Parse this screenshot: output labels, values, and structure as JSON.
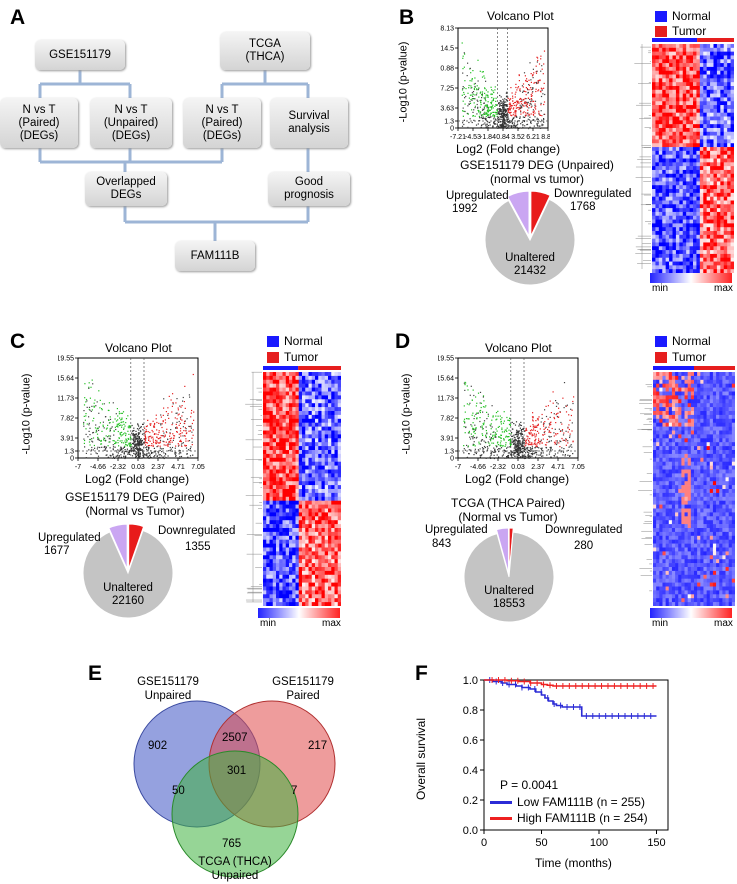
{
  "panels": {
    "a": "A",
    "b": "B",
    "c": "C",
    "d": "D",
    "e": "E",
    "f": "F"
  },
  "flow": {
    "gse": "GSE151179",
    "tcga_1": "TCGA",
    "tcga_2": "(THCA)",
    "nt_paired_1": "N vs T",
    "nt_paired_2": "(Paired)",
    "nt_paired_3": "(DEGs)",
    "nt_unpaired_1": "N vs T",
    "nt_unpaired_2": "(Unpaired)",
    "nt_unpaired_3": "(DEGs)",
    "tcga_paired_1": "N vs T",
    "tcga_paired_2": "(Paired)",
    "tcga_paired_3": "(DEGs)",
    "survival_1": "Survival",
    "survival_2": "analysis",
    "overlapped_1": "Overlapped",
    "overlapped_2": "DEGs",
    "good_1": "Good",
    "good_2": "prognosis",
    "result": "FAM111B"
  },
  "heat_legend": {
    "normal": "Normal",
    "tumor": "Tumor",
    "min": "min",
    "max": "max",
    "normal_color": "#1a1aff",
    "tumor_color": "#e61e1e"
  },
  "volcano_b": {
    "title": "Volcano Plot",
    "ylabel": "-Log10 (p-value)",
    "xlabel": "Log2 (Fold change)",
    "yticks": [
      "0",
      "1.3",
      "3.63",
      "7.25",
      "10.88",
      "14.5",
      "18.13"
    ],
    "xticks": [
      "-7.21",
      "-4.53",
      "-1.84",
      "0.84",
      "3.52",
      "6.21",
      "8.89"
    ]
  },
  "pie_b": {
    "title_1": "GSE151179 DEG (Unpaired)",
    "title_2": "(normal vs tumor)",
    "up_label": "Upregulated",
    "up_value": "1992",
    "down_label": "Downregulated",
    "down_value": "1768",
    "un_label": "Unaltered",
    "un_value": "21432"
  },
  "volcano_c": {
    "title": "Volcano Plot",
    "ylabel": "-Log10 (p-value)",
    "xlabel": "Log2 (Fold change)",
    "yticks": [
      "0",
      "1.3",
      "3.91",
      "7.82",
      "11.73",
      "15.64",
      "19.55"
    ],
    "xticks": [
      "-7",
      "-4.66",
      "-2.32",
      "0.03",
      "2.37",
      "4.71",
      "7.05"
    ]
  },
  "pie_c": {
    "title_1": "GSE151179 DEG (Paired)",
    "title_2": "(Normal vs Tumor)",
    "up_label": "Upregulated",
    "up_value": "1677",
    "down_label": "Downregulated",
    "down_value": "1355",
    "un_label": "Unaltered",
    "un_value": "22160"
  },
  "volcano_d": {
    "title": "Volcano Plot",
    "ylabel": "-Log10 (p-value)",
    "xlabel": "Log2 (Fold change)",
    "yticks": [
      "0",
      "1.3",
      "3.91",
      "7.82",
      "11.73",
      "15.64",
      "19.55"
    ],
    "xticks": [
      "-7",
      "-4.66",
      "-2.32",
      "0.03",
      "2.37",
      "4.71",
      "7.05"
    ]
  },
  "pie_d": {
    "title_1": "TCGA (THCA Paired)",
    "title_2": "(Normal vs Tumor)",
    "up_label": "Upregulated",
    "up_value": "843",
    "down_label": "Downregulated",
    "down_value": "280",
    "un_label": "Unaltered",
    "un_value": "18553"
  },
  "venn": {
    "set1_1": "GSE151179",
    "set1_2": "Unpaired",
    "set2_1": "GSE151179",
    "set2_2": "Paired",
    "set3_1": "TCGA (THCA)",
    "set3_2": "Unpaired",
    "only1": "902",
    "only2": "217",
    "only3": "765",
    "i12": "2507",
    "i13": "50",
    "i23": "7",
    "i123": "301",
    "colors": [
      "#4f63c9",
      "#e04a4a",
      "#3fb33f"
    ]
  },
  "survival": {
    "ylabel": "Overall survival",
    "xlabel": "Time (months)",
    "yticks": [
      "0.0",
      "0.2",
      "0.4",
      "0.6",
      "0.8",
      "1.0"
    ],
    "xticks": [
      "0",
      "50",
      "100",
      "150"
    ],
    "pvalue": "P = 0.0041",
    "low_label": "Low FAM111B (n = 255)",
    "high_label": "High FAM111B (n = 254)",
    "low_color": "#2b2bd6",
    "high_color": "#ee2020"
  },
  "chart_data": {
    "type": "line",
    "title": "",
    "xlabel": "Time (months)",
    "ylabel": "Overall survival",
    "xlim": [
      0,
      160
    ],
    "ylim": [
      0,
      1.0
    ],
    "series": [
      {
        "name": "Low FAM111B (n = 255)",
        "x": [
          0,
          8,
          15,
          20,
          28,
          33,
          40,
          45,
          50,
          53,
          56,
          60,
          63,
          68,
          75,
          85,
          90,
          120,
          150
        ],
        "y": [
          1.0,
          0.99,
          0.98,
          0.97,
          0.96,
          0.95,
          0.94,
          0.92,
          0.9,
          0.88,
          0.86,
          0.84,
          0.83,
          0.82,
          0.82,
          0.76,
          0.76,
          0.76,
          0.76
        ]
      },
      {
        "name": "High FAM111B (n = 254)",
        "x": [
          0,
          20,
          30,
          40,
          50,
          55,
          60,
          150
        ],
        "y": [
          1.0,
          0.995,
          0.99,
          0.98,
          0.97,
          0.965,
          0.96,
          0.96
        ]
      }
    ]
  }
}
